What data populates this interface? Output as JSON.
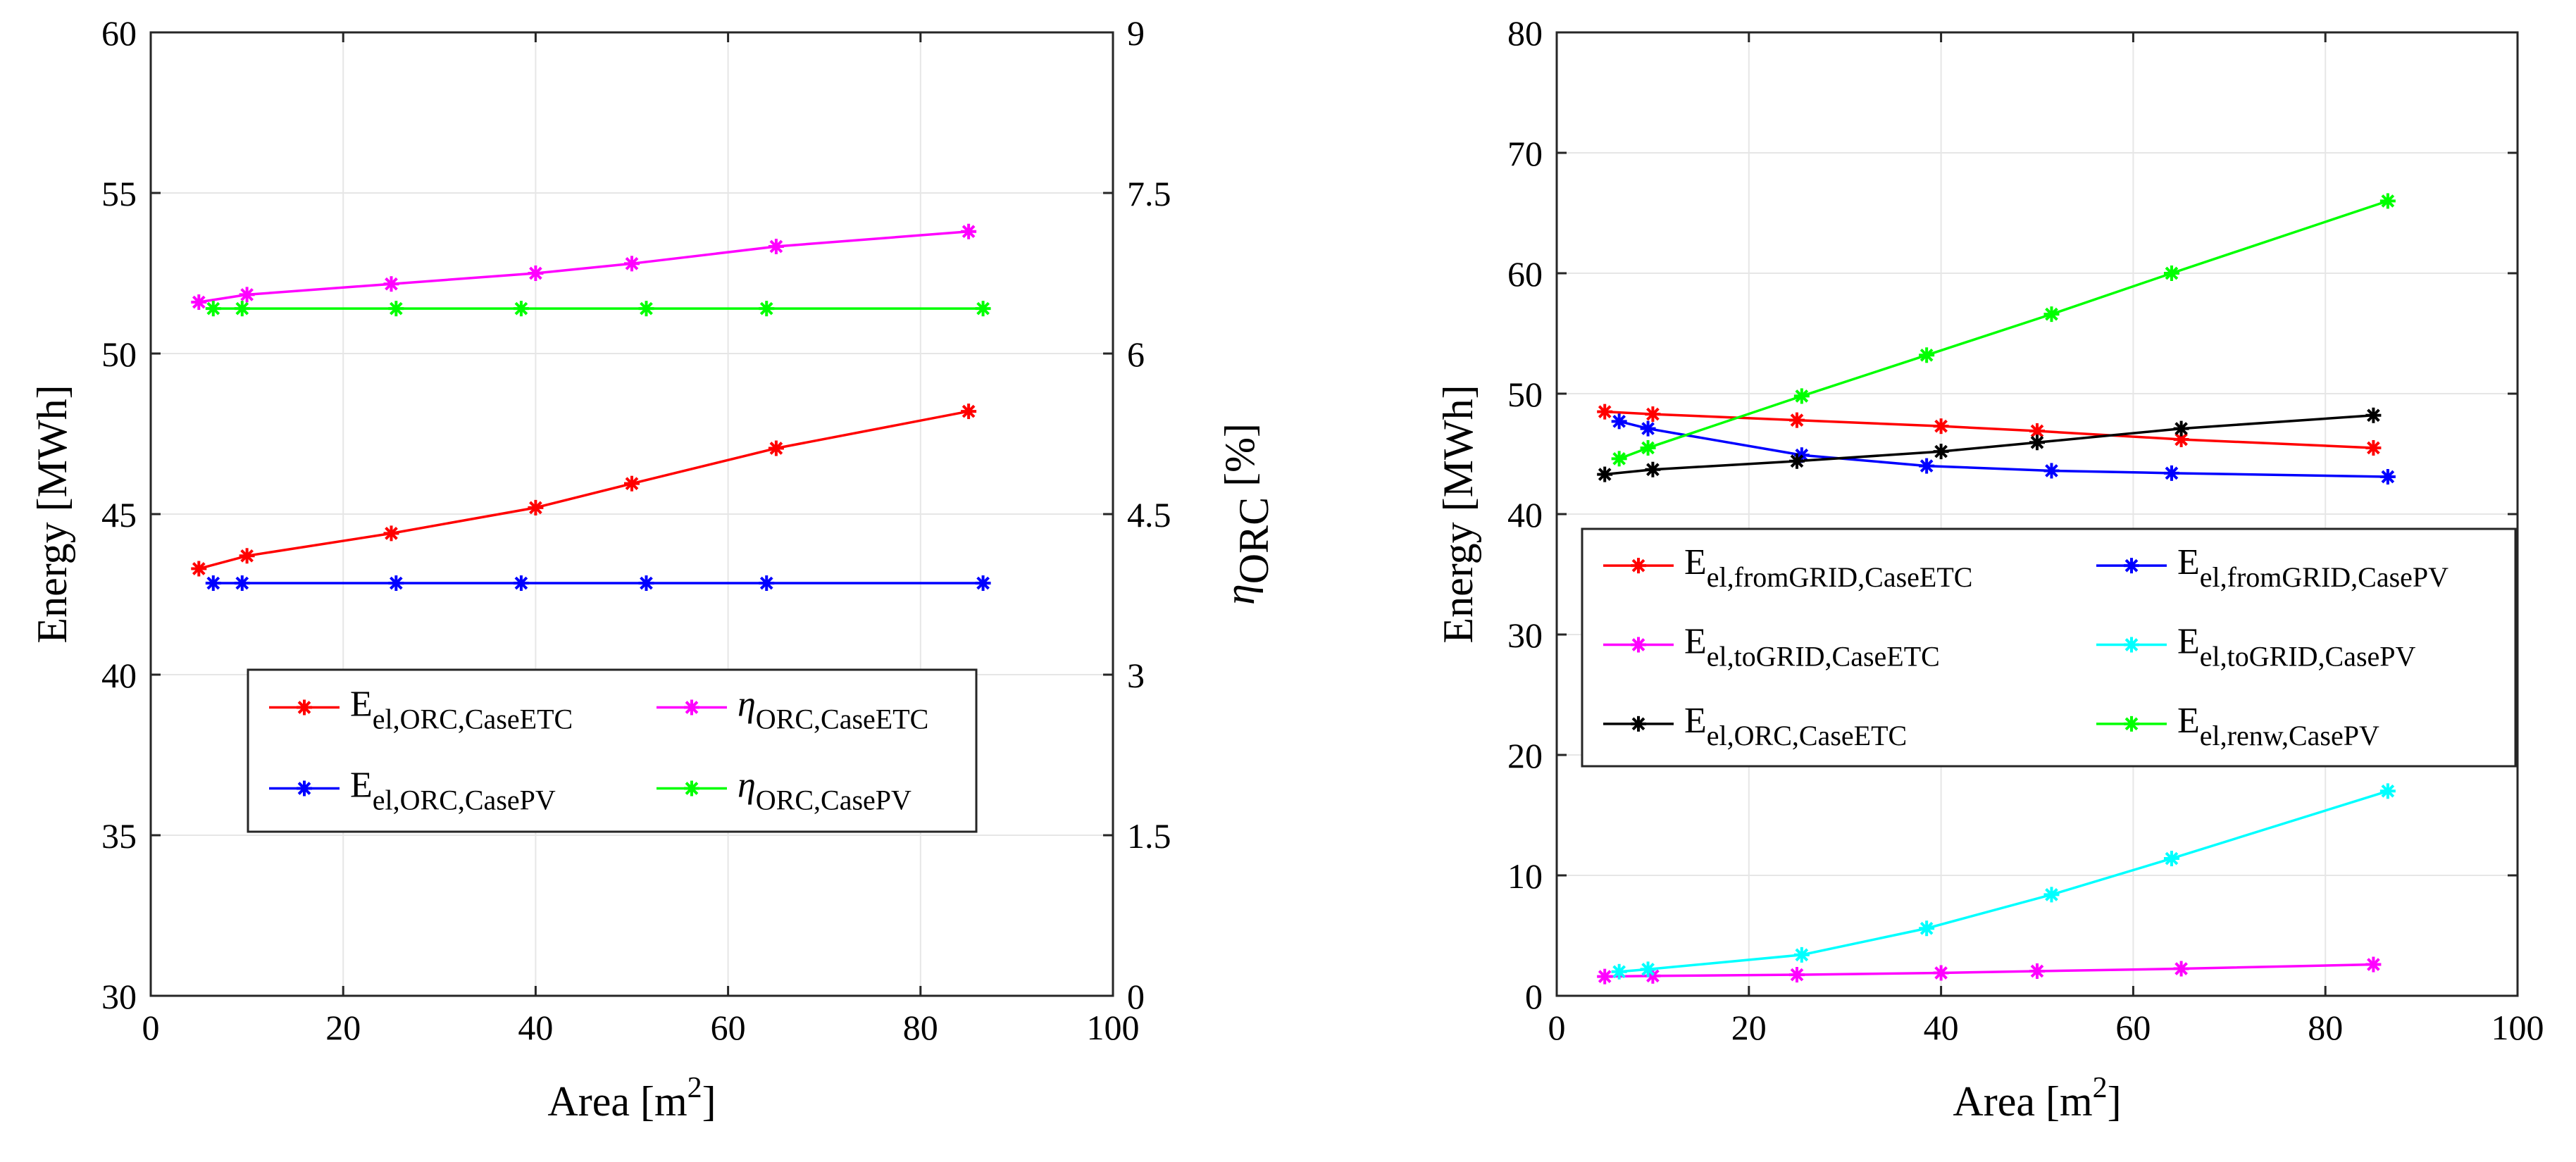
{
  "chart_data": [
    {
      "type": "line",
      "xlabel": "Area [m",
      "xlabel_sup": "2",
      "xlabel_end": "]",
      "ylabel": "Energy [MWh]",
      "ylabel_right_main": "η",
      "ylabel_right_sub": "ORC",
      "ylabel_right_end": " [%]",
      "xlim": [
        0,
        100
      ],
      "ylim": [
        30,
        60
      ],
      "ylim_right": [
        0,
        9
      ],
      "xticks": [
        0,
        20,
        40,
        60,
        80,
        100
      ],
      "yticks": [
        30,
        35,
        40,
        45,
        50,
        55,
        60
      ],
      "yticks_right": [
        0,
        1.5,
        3,
        4.5,
        6,
        7.5,
        9
      ],
      "xtick_labels": [
        "0",
        "20",
        "40",
        "60",
        "80",
        "100"
      ],
      "ytick_labels": [
        "30",
        "35",
        "40",
        "45",
        "50",
        "55",
        "60"
      ],
      "ytick_right_labels": [
        "0",
        "1.5",
        "3",
        "4.5",
        "6",
        "7.5",
        "9"
      ],
      "grid": true,
      "legend_position": "lower-center",
      "series": [
        {
          "name": "E_el,ORC,CaseETC",
          "label_main": "E",
          "label_sub": "el,ORC,CaseETC",
          "color": "#ff0000",
          "axis": "left",
          "x": [
            5,
            10,
            25,
            40,
            50,
            65,
            85
          ],
          "y": [
            43.3,
            43.7,
            44.4,
            45.2,
            45.95,
            47.05,
            48.2
          ]
        },
        {
          "name": "η_ORC,CaseETC",
          "label_main": "η",
          "label_sub": "ORC,CaseETC",
          "color": "#ff00ff",
          "axis": "right",
          "x": [
            5,
            10,
            25,
            40,
            50,
            65,
            85
          ],
          "y": [
            6.48,
            6.55,
            6.65,
            6.75,
            6.84,
            7.0,
            7.14
          ]
        },
        {
          "name": "E_el,ORC,CasePV",
          "label_main": "E",
          "label_sub": "el,ORC,CasePV",
          "color": "#0000ff",
          "axis": "left",
          "x": [
            6.5,
            9.5,
            25.5,
            38.5,
            51.5,
            64,
            86.5
          ],
          "y": [
            42.85,
            42.85,
            42.85,
            42.85,
            42.85,
            42.85,
            42.85
          ]
        },
        {
          "name": "η_ORC,CasePV",
          "label_main": "η",
          "label_sub": "ORC,CasePV",
          "color": "#00ff00",
          "axis": "right",
          "x": [
            6.5,
            9.5,
            25.5,
            38.5,
            51.5,
            64,
            86.5
          ],
          "y": [
            6.42,
            6.42,
            6.42,
            6.42,
            6.42,
            6.42,
            6.42
          ]
        }
      ]
    },
    {
      "type": "line",
      "xlabel": "Area [m",
      "xlabel_sup": "2",
      "xlabel_end": "]",
      "ylabel": "Energy [MWh]",
      "xlim": [
        0,
        100
      ],
      "ylim": [
        0,
        80
      ],
      "xticks": [
        0,
        20,
        40,
        60,
        80,
        100
      ],
      "yticks": [
        0,
        10,
        20,
        30,
        40,
        50,
        60,
        70,
        80
      ],
      "xtick_labels": [
        "0",
        "20",
        "40",
        "60",
        "80",
        "100"
      ],
      "ytick_labels": [
        "0",
        "10",
        "20",
        "30",
        "40",
        "50",
        "60",
        "70",
        "80"
      ],
      "grid": true,
      "legend_position": "center-left",
      "series": [
        {
          "name": "E_el,fromGRID,CaseETC",
          "label_main": "E",
          "label_sub": "el,fromGRID,CaseETC",
          "color": "#ff0000",
          "x": [
            5,
            10,
            25,
            40,
            50,
            65,
            85
          ],
          "y": [
            48.5,
            48.3,
            47.8,
            47.3,
            46.9,
            46.2,
            45.5
          ]
        },
        {
          "name": "E_el,fromGRID,CasePV",
          "label_main": "E",
          "label_sub": "el,fromGRID,CasePV",
          "color": "#0000ff",
          "x": [
            6.5,
            9.5,
            25.5,
            38.5,
            51.5,
            64,
            86.5
          ],
          "y": [
            47.7,
            47.1,
            44.9,
            44.0,
            43.6,
            43.4,
            43.1
          ]
        },
        {
          "name": "E_el,toGRID,CaseETC",
          "label_main": "E",
          "label_sub": "el,toGRID,CaseETC",
          "color": "#ff00ff",
          "x": [
            5,
            10,
            25,
            40,
            50,
            65,
            85
          ],
          "y": [
            1.6,
            1.65,
            1.75,
            1.9,
            2.05,
            2.25,
            2.6
          ]
        },
        {
          "name": "E_el,toGRID,CasePV",
          "label_main": "E",
          "label_sub": "el,toGRID,CasePV",
          "color": "#00ffff",
          "x": [
            6.5,
            9.5,
            25.5,
            38.5,
            51.5,
            64,
            86.5
          ],
          "y": [
            2.0,
            2.2,
            3.4,
            5.6,
            8.4,
            11.4,
            17.0
          ]
        },
        {
          "name": "E_el,ORC,CaseETC",
          "label_main": "E",
          "label_sub": "el,ORC,CaseETC",
          "color": "#000000",
          "x": [
            5,
            10,
            25,
            40,
            50,
            65,
            85
          ],
          "y": [
            43.3,
            43.7,
            44.4,
            45.2,
            45.95,
            47.1,
            48.2
          ]
        },
        {
          "name": "E_el,renw,CasePV",
          "label_main": "E",
          "label_sub": "el,renw,CasePV",
          "color": "#00ff00",
          "x": [
            6.5,
            9.5,
            25.5,
            38.5,
            51.5,
            64,
            86.5
          ],
          "y": [
            44.6,
            45.5,
            49.8,
            53.2,
            56.6,
            60.0,
            66.0
          ]
        }
      ]
    }
  ]
}
